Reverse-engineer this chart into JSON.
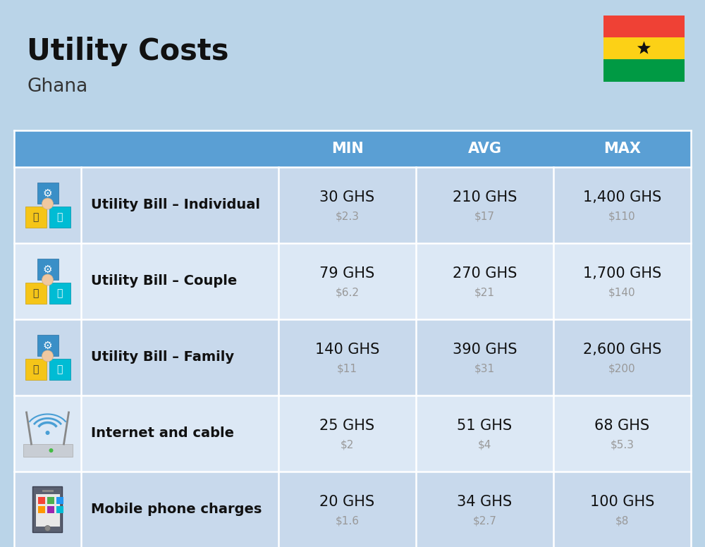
{
  "title": "Utility Costs",
  "subtitle": "Ghana",
  "background_color": "#bad4e8",
  "header_bg_color": "#5a9fd4",
  "row_bg_color_1": "#c8d9ec",
  "row_bg_color_2": "#dce8f5",
  "header_text_color": "#ffffff",
  "title_color": "#111111",
  "subtitle_color": "#333333",
  "label_color": "#111111",
  "value_color": "#111111",
  "sub_value_color": "#999999",
  "col_headers": [
    "MIN",
    "AVG",
    "MAX"
  ],
  "rows": [
    {
      "label": "Utility Bill – Individual",
      "min_ghs": "30 GHS",
      "min_usd": "$2.3",
      "avg_ghs": "210 GHS",
      "avg_usd": "$17",
      "max_ghs": "1,400 GHS",
      "max_usd": "$110",
      "icon": "utility"
    },
    {
      "label": "Utility Bill – Couple",
      "min_ghs": "79 GHS",
      "min_usd": "$6.2",
      "avg_ghs": "270 GHS",
      "avg_usd": "$21",
      "max_ghs": "1,700 GHS",
      "max_usd": "$140",
      "icon": "utility"
    },
    {
      "label": "Utility Bill – Family",
      "min_ghs": "140 GHS",
      "min_usd": "$11",
      "avg_ghs": "390 GHS",
      "avg_usd": "$31",
      "max_ghs": "2,600 GHS",
      "max_usd": "$200",
      "icon": "utility"
    },
    {
      "label": "Internet and cable",
      "min_ghs": "25 GHS",
      "min_usd": "$2",
      "avg_ghs": "51 GHS",
      "avg_usd": "$4",
      "max_ghs": "68 GHS",
      "max_usd": "$5.3",
      "icon": "internet"
    },
    {
      "label": "Mobile phone charges",
      "min_ghs": "20 GHS",
      "min_usd": "$1.6",
      "avg_ghs": "34 GHS",
      "avg_usd": "$2.7",
      "max_ghs": "100 GHS",
      "max_usd": "$8",
      "icon": "mobile"
    }
  ],
  "flag_colors": [
    "#ef4135",
    "#fcd116",
    "#009a44"
  ],
  "flag_star_color": "#000000"
}
